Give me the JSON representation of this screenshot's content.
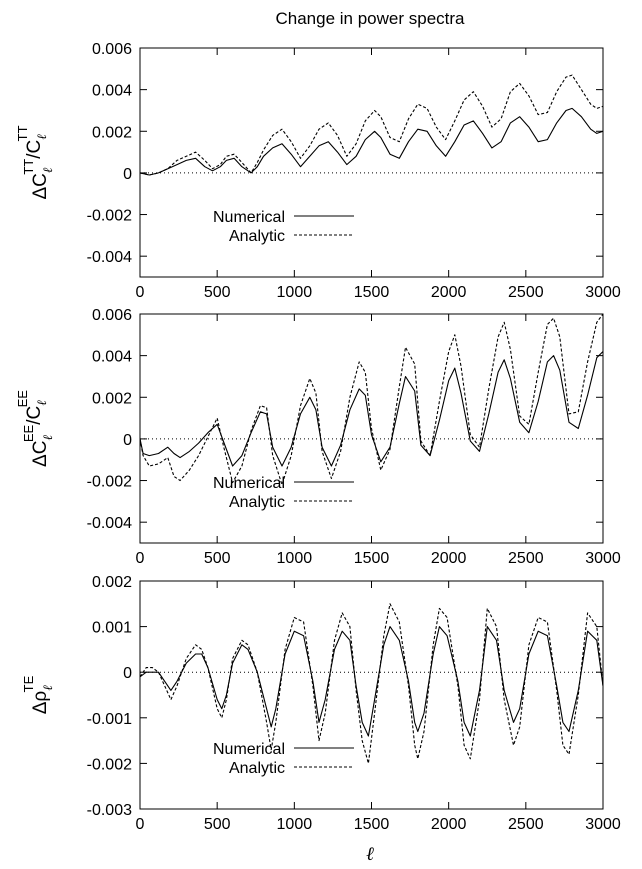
{
  "title": "Change in power spectra",
  "xlabel": "ℓ",
  "legend_labels": [
    "Numerical",
    "Analytic"
  ],
  "chart_data": [
    {
      "type": "line",
      "ylabel": "ΔC_ℓ^TT/C_ℓ^TT",
      "xlim": [
        0,
        3000
      ],
      "ylim": [
        -0.005,
        0.006
      ],
      "xticks": [
        "0",
        "500",
        "1000",
        "1500",
        "2000",
        "2500",
        "3000"
      ],
      "yticks": [
        "0.006",
        "0.004",
        "0.002",
        "0",
        "-0.002",
        "-0.004"
      ],
      "legend": "bottom-left",
      "series": [
        {
          "name": "Numerical",
          "style": "solid",
          "x": [
            0,
            60,
            120,
            180,
            240,
            300,
            360,
            420,
            470,
            520,
            560,
            610,
            660,
            720,
            760,
            800,
            860,
            920,
            980,
            1040,
            1100,
            1160,
            1220,
            1280,
            1340,
            1400,
            1460,
            1520,
            1560,
            1620,
            1680,
            1740,
            1800,
            1860,
            1920,
            1980,
            2040,
            2100,
            2160,
            2220,
            2280,
            2340,
            2400,
            2460,
            2520,
            2580,
            2640,
            2700,
            2760,
            2800,
            2860,
            2920,
            2960,
            3000
          ],
          "y": [
            0,
            -0.0001,
            0,
            0.0002,
            0.0004,
            0.0006,
            0.0007,
            0.0003,
            0.0001,
            0.0003,
            0.0006,
            0.0007,
            0.0003,
            0,
            0.0003,
            0.0008,
            0.0012,
            0.0014,
            0.0009,
            0.0003,
            0.0008,
            0.0013,
            0.0015,
            0.001,
            0.0004,
            0.0008,
            0.0016,
            0.002,
            0.0017,
            0.0009,
            0.0007,
            0.0015,
            0.0021,
            0.002,
            0.0013,
            0.0008,
            0.0015,
            0.0023,
            0.0025,
            0.0019,
            0.0012,
            0.0015,
            0.0024,
            0.0027,
            0.0022,
            0.0015,
            0.0016,
            0.0024,
            0.003,
            0.0031,
            0.0027,
            0.0021,
            0.0019,
            0.002
          ]
        },
        {
          "name": "Analytic",
          "style": "dashed",
          "x": [
            0,
            60,
            120,
            180,
            240,
            300,
            360,
            420,
            470,
            520,
            560,
            610,
            660,
            720,
            760,
            800,
            860,
            920,
            980,
            1040,
            1100,
            1160,
            1220,
            1280,
            1340,
            1400,
            1460,
            1520,
            1560,
            1620,
            1680,
            1740,
            1800,
            1860,
            1920,
            1980,
            2040,
            2100,
            2160,
            2220,
            2280,
            2340,
            2400,
            2460,
            2520,
            2580,
            2640,
            2700,
            2760,
            2800,
            2860,
            2920,
            2960,
            3000
          ],
          "y": [
            0,
            -0.0001,
            0,
            0.0002,
            0.0006,
            0.0008,
            0.001,
            0.0006,
            0.0002,
            0.0004,
            0.0008,
            0.0009,
            0.0005,
            0,
            0.0005,
            0.0011,
            0.0018,
            0.0021,
            0.0015,
            0.0007,
            0.0013,
            0.0021,
            0.0024,
            0.0018,
            0.0008,
            0.0014,
            0.0025,
            0.003,
            0.0027,
            0.0017,
            0.0015,
            0.0026,
            0.0033,
            0.0031,
            0.0022,
            0.0016,
            0.0025,
            0.0035,
            0.0039,
            0.0032,
            0.0022,
            0.0026,
            0.0039,
            0.0043,
            0.0037,
            0.0028,
            0.0029,
            0.0039,
            0.0046,
            0.0047,
            0.004,
            0.0033,
            0.0031,
            0.0032
          ]
        }
      ]
    },
    {
      "type": "line",
      "ylabel": "ΔC_ℓ^EE/C_ℓ^EE",
      "xlim": [
        0,
        3000
      ],
      "ylim": [
        -0.005,
        0.006
      ],
      "xticks": [
        "0",
        "500",
        "1000",
        "1500",
        "2000",
        "2500",
        "3000"
      ],
      "yticks": [
        "0.006",
        "0.004",
        "0.002",
        "0",
        "-0.002",
        "-0.004"
      ],
      "legend": "bottom-left",
      "series": [
        {
          "name": "Numerical",
          "style": "solid",
          "x": [
            0,
            20,
            60,
            120,
            180,
            220,
            260,
            320,
            380,
            440,
            500,
            540,
            600,
            660,
            720,
            780,
            820,
            860,
            920,
            980,
            1040,
            1100,
            1140,
            1180,
            1240,
            1300,
            1360,
            1420,
            1460,
            1500,
            1560,
            1620,
            1680,
            1720,
            1780,
            1820,
            1880,
            1940,
            2000,
            2040,
            2080,
            2140,
            2200,
            2260,
            2320,
            2360,
            2400,
            2460,
            2520,
            2580,
            2640,
            2680,
            2720,
            2780,
            2840,
            2900,
            2960,
            3000
          ],
          "y": [
            0,
            -0.0007,
            -0.0008,
            -0.0007,
            -0.0004,
            -0.0007,
            -0.0009,
            -0.0006,
            -0.0002,
            0.0003,
            0.0007,
            -0.0001,
            -0.0013,
            -0.0008,
            0.0003,
            0.0013,
            0.0012,
            -0.0004,
            -0.0013,
            -0.0004,
            0.0012,
            0.002,
            0.0014,
            -0.0004,
            -0.0013,
            -0.0003,
            0.0014,
            0.0024,
            0.0021,
            0.0002,
            -0.0011,
            -0.0004,
            0.0017,
            0.003,
            0.0023,
            -0.0003,
            -0.0008,
            0.0009,
            0.0028,
            0.0034,
            0.0022,
            -0.0001,
            -0.0006,
            0.0012,
            0.0032,
            0.0038,
            0.0029,
            0.0008,
            0.0003,
            0.0018,
            0.0037,
            0.004,
            0.0033,
            0.0008,
            0.0005,
            0.0021,
            0.0039,
            0.0042
          ]
        },
        {
          "name": "Analytic",
          "style": "dashed",
          "x": [
            0,
            20,
            60,
            120,
            180,
            220,
            260,
            320,
            380,
            440,
            500,
            540,
            600,
            660,
            720,
            780,
            820,
            860,
            920,
            980,
            1040,
            1100,
            1140,
            1180,
            1240,
            1300,
            1360,
            1420,
            1460,
            1500,
            1560,
            1620,
            1680,
            1720,
            1780,
            1820,
            1880,
            1940,
            2000,
            2040,
            2080,
            2140,
            2200,
            2260,
            2320,
            2360,
            2400,
            2460,
            2520,
            2580,
            2640,
            2680,
            2720,
            2780,
            2840,
            2900,
            2960,
            3000
          ],
          "y": [
            0,
            -0.0008,
            -0.0013,
            -0.0012,
            -0.0009,
            -0.0018,
            -0.002,
            -0.0015,
            -0.0008,
            0.0001,
            0.001,
            -0.0003,
            -0.0021,
            -0.0013,
            0.0004,
            0.0016,
            0.0015,
            -0.0008,
            -0.0022,
            -0.0008,
            0.0016,
            0.0029,
            0.0022,
            -0.0006,
            -0.0019,
            -0.0006,
            0.002,
            0.0037,
            0.0032,
            0.0005,
            -0.0015,
            -0.0005,
            0.0025,
            0.0044,
            0.0036,
            -0.0001,
            -0.0008,
            0.0018,
            0.0042,
            0.005,
            0.0035,
            0.0002,
            -0.0004,
            0.0024,
            0.0049,
            0.0056,
            0.0043,
            0.0011,
            0.0007,
            0.0032,
            0.0055,
            0.0058,
            0.0049,
            0.0012,
            0.0013,
            0.0037,
            0.0056,
            0.006
          ]
        }
      ]
    },
    {
      "type": "line",
      "ylabel": "Δρ_ℓ^TE",
      "xlim": [
        0,
        3000
      ],
      "ylim": [
        -0.003,
        0.002
      ],
      "xticks": [
        "0",
        "500",
        "1000",
        "1500",
        "2000",
        "2500",
        "3000"
      ],
      "yticks": [
        "0.002",
        "0.001",
        "0",
        "-0.001",
        "-0.002",
        "-0.003"
      ],
      "legend": "bottom-left",
      "series": [
        {
          "name": "Numerical",
          "style": "solid",
          "x": [
            0,
            40,
            80,
            120,
            160,
            200,
            240,
            300,
            360,
            400,
            440,
            500,
            530,
            560,
            600,
            660,
            700,
            760,
            820,
            850,
            880,
            940,
            1000,
            1060,
            1120,
            1160,
            1200,
            1260,
            1310,
            1360,
            1400,
            1440,
            1480,
            1520,
            1580,
            1620,
            1680,
            1740,
            1780,
            1800,
            1840,
            1900,
            1940,
            1990,
            2060,
            2100,
            2140,
            2200,
            2250,
            2310,
            2360,
            2420,
            2460,
            2520,
            2580,
            2640,
            2700,
            2740,
            2780,
            2840,
            2900,
            2960,
            3000
          ],
          "y": [
            -0.0001,
            0,
            0,
            0,
            -0.0002,
            -0.0004,
            -0.0002,
            0.0002,
            0.0004,
            0.0004,
            0.0001,
            -0.0006,
            -0.0008,
            -0.0005,
            0.0002,
            0.0006,
            0.0005,
            0,
            -0.0008,
            -0.0012,
            -0.0008,
            0.0004,
            0.0009,
            0.0008,
            -0.0002,
            -0.0011,
            -0.0006,
            0.0005,
            0.0009,
            0.0007,
            -0.0003,
            -0.0011,
            -0.0014,
            -0.0006,
            0.0006,
            0.001,
            0.0007,
            -0.0002,
            -0.0011,
            -0.0013,
            -0.0009,
            0.0004,
            0.001,
            0.0008,
            -0.0002,
            -0.0011,
            -0.0014,
            -0.0004,
            0.001,
            0.0007,
            -0.0004,
            -0.0011,
            -0.0008,
            0.0004,
            0.0009,
            0.0008,
            -0.0003,
            -0.0011,
            -0.0013,
            -0.0004,
            0.0009,
            0.0007,
            -0.0003
          ]
        },
        {
          "name": "Analytic",
          "style": "dashed",
          "x": [
            0,
            40,
            80,
            120,
            160,
            200,
            240,
            300,
            360,
            400,
            440,
            500,
            530,
            560,
            600,
            660,
            700,
            760,
            820,
            850,
            880,
            940,
            1000,
            1060,
            1120,
            1160,
            1200,
            1260,
            1310,
            1360,
            1400,
            1440,
            1480,
            1520,
            1580,
            1620,
            1680,
            1740,
            1780,
            1800,
            1840,
            1900,
            1940,
            1990,
            2060,
            2100,
            2140,
            2200,
            2250,
            2310,
            2360,
            2420,
            2460,
            2520,
            2580,
            2640,
            2700,
            2740,
            2780,
            2840,
            2900,
            2960,
            3000
          ],
          "y": [
            -0.0001,
            0.0001,
            0.0001,
            0,
            -0.0003,
            -0.0006,
            -0.0003,
            0.0003,
            0.0006,
            0.0005,
            0.0001,
            -0.0008,
            -0.001,
            -0.0006,
            0.0003,
            0.0007,
            0.0006,
            0,
            -0.0011,
            -0.0017,
            -0.0011,
            0.0005,
            0.0012,
            0.0011,
            -0.0003,
            -0.0015,
            -0.0009,
            0.0007,
            0.0013,
            0.001,
            -0.0004,
            -0.0015,
            -0.002,
            -0.0009,
            0.0008,
            0.0015,
            0.0011,
            -0.0003,
            -0.0016,
            -0.0019,
            -0.0013,
            0.0006,
            0.0014,
            0.0012,
            -0.0003,
            -0.0016,
            -0.0019,
            -0.0006,
            0.0014,
            0.001,
            -0.0006,
            -0.0016,
            -0.0012,
            0.0006,
            0.0012,
            0.0011,
            -0.0004,
            -0.0016,
            -0.0018,
            -0.0005,
            0.0013,
            0.001,
            -0.0003
          ]
        }
      ]
    }
  ]
}
